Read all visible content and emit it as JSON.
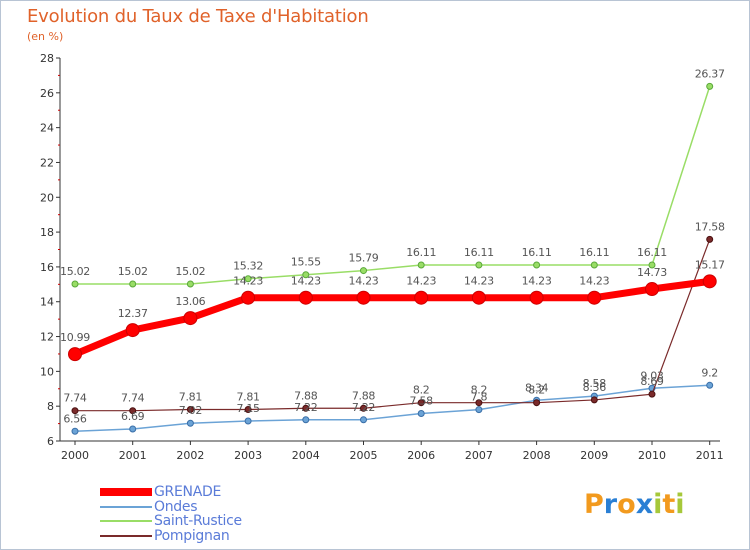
{
  "title": "Evolution du Taux de Taxe d'Habitation",
  "unit_label": "(en %)",
  "logo_text": "Proxiti",
  "chart_data": {
    "type": "line",
    "title": "Evolution du Taux de Taxe d'Habitation",
    "ylabel": "(en %)",
    "xlabel": "",
    "ylim": [
      6,
      28
    ],
    "yticks": [
      6,
      8,
      10,
      12,
      14,
      16,
      18,
      20,
      22,
      24,
      26,
      28
    ],
    "categories": [
      "2000",
      "2001",
      "2002",
      "2003",
      "2004",
      "2005",
      "2006",
      "2007",
      "2008",
      "2009",
      "2010",
      "2011"
    ],
    "series": [
      {
        "name": "GRENADE",
        "color": "#ff0000",
        "values": [
          10.99,
          12.37,
          13.06,
          14.23,
          14.23,
          14.23,
          14.23,
          14.23,
          14.23,
          14.23,
          14.73,
          15.17
        ],
        "labels": [
          "10.99",
          "12.37",
          "13.06",
          "14.23",
          "14.23",
          "14.23",
          "14.23",
          "14.23",
          "14.23",
          "14.23",
          "14.73",
          "15.17"
        ]
      },
      {
        "name": "Ondes",
        "color": "#6ba3d6",
        "values": [
          6.56,
          6.69,
          7.02,
          7.15,
          7.22,
          7.22,
          7.58,
          7.8,
          8.34,
          8.58,
          9.03,
          9.2
        ],
        "labels": [
          "6.56",
          "6.69",
          "7.02",
          "7.15",
          "7.22",
          "7.22",
          "7.58",
          "7.8",
          "8.34",
          "8.58",
          "9.03",
          "9.2"
        ]
      },
      {
        "name": "Saint-Rustice",
        "color": "#99dd66",
        "values": [
          15.02,
          15.02,
          15.02,
          15.32,
          15.55,
          15.79,
          16.11,
          16.11,
          16.11,
          16.11,
          16.11,
          26.37
        ],
        "labels": [
          "15.02",
          "15.02",
          "15.02",
          "15.32",
          "15.55",
          "15.79",
          "16.11",
          "16.11",
          "16.11",
          "16.11",
          "16.11",
          "26.37"
        ]
      },
      {
        "name": "Pompignan",
        "color": "#7a2a2a",
        "values": [
          7.74,
          7.74,
          7.81,
          7.81,
          7.88,
          7.88,
          8.2,
          8.2,
          8.2,
          8.36,
          8.69,
          17.58
        ],
        "labels": [
          "7.74",
          "7.74",
          "7.81",
          "7.81",
          "7.88",
          "7.88",
          "8.2",
          "8.2",
          "8.2",
          "8.36",
          "8.69",
          "17.58"
        ]
      }
    ],
    "legend": "bottom-left"
  }
}
